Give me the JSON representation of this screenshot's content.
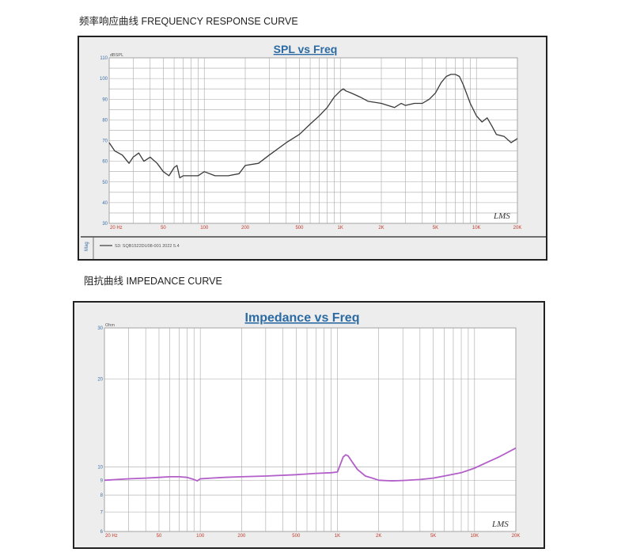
{
  "headings": {
    "freq": "频率响应曲线 FREQUENCY RESPONSE CURVE",
    "imp": "阻抗曲线 IMPEDANCE CURVE"
  },
  "colors": {
    "title": "#2b6aa3",
    "spl_line": "#3a3a3a",
    "imp_line": "#b25fc9",
    "tick": "#c0392b"
  },
  "chart_data": [
    {
      "type": "line",
      "title": "SPL vs Freq",
      "ylabel": "dBSPL",
      "xscale": "log",
      "xlim": [
        20,
        20000
      ],
      "ylim": [
        30,
        110
      ],
      "x_ticks": [
        {
          "v": 20,
          "label": "20 Hz"
        },
        {
          "v": 50,
          "label": "50"
        },
        {
          "v": 100,
          "label": "100"
        },
        {
          "v": 200,
          "label": "200"
        },
        {
          "v": 500,
          "label": "500"
        },
        {
          "v": 1000,
          "label": "1K"
        },
        {
          "v": 2000,
          "label": "2K"
        },
        {
          "v": 5000,
          "label": "5K"
        },
        {
          "v": 10000,
          "label": "10K"
        },
        {
          "v": 20000,
          "label": "20K"
        }
      ],
      "y_ticks": [
        110,
        100,
        90,
        80,
        70,
        60,
        50,
        40,
        30
      ],
      "legend_label": "Mag",
      "legend_text": "S3: SQB1522DU08-001  2022 5.4",
      "watermark": "LMS",
      "series": [
        {
          "x": [
            20,
            22,
            25,
            28,
            30,
            33,
            36,
            40,
            45,
            50,
            55,
            60,
            63,
            66,
            70,
            80,
            90,
            100,
            120,
            150,
            180,
            200,
            250,
            300,
            400,
            500,
            600,
            700,
            800,
            900,
            1000,
            1050,
            1100,
            1200,
            1400,
            1600,
            2000,
            2500,
            2800,
            3000,
            3500,
            4000,
            4500,
            5000,
            5500,
            6000,
            6500,
            7000,
            7500,
            8000,
            9000,
            10000,
            11000,
            12000,
            13000,
            14000,
            16000,
            18000,
            20000
          ],
          "y": [
            69,
            65,
            63,
            59,
            62,
            64,
            60,
            62,
            59,
            55,
            53,
            57,
            58,
            52,
            53,
            53,
            53,
            55,
            53,
            53,
            54,
            58,
            59,
            63,
            69,
            73,
            78,
            82,
            86,
            91,
            94,
            95,
            94,
            93,
            91,
            89,
            88,
            86,
            88,
            87,
            88,
            88,
            90,
            93,
            98,
            101,
            102,
            102,
            101,
            97,
            88,
            82,
            79,
            81,
            77,
            73,
            72,
            69,
            71
          ]
        }
      ]
    },
    {
      "type": "line",
      "title": "Impedance vs Freq",
      "ylabel": "Ohm",
      "xscale": "log",
      "yscale": "log",
      "xlim": [
        20,
        20000
      ],
      "ylim": [
        6,
        30
      ],
      "x_ticks": [
        {
          "v": 20,
          "label": "20 Hz"
        },
        {
          "v": 50,
          "label": "50"
        },
        {
          "v": 100,
          "label": "100"
        },
        {
          "v": 200,
          "label": "200"
        },
        {
          "v": 500,
          "label": "500"
        },
        {
          "v": 1000,
          "label": "1K"
        },
        {
          "v": 2000,
          "label": "2K"
        },
        {
          "v": 5000,
          "label": "5K"
        },
        {
          "v": 10000,
          "label": "10K"
        },
        {
          "v": 20000,
          "label": "20K"
        }
      ],
      "y_ticks": [
        {
          "v": 30,
          "label": "30"
        },
        {
          "v": 20,
          "label": "20"
        },
        {
          "v": 10,
          "label": "10"
        },
        {
          "v": 9,
          "label": "9"
        },
        {
          "v": 8,
          "label": "8"
        },
        {
          "v": 7,
          "label": "7"
        },
        {
          "v": 6,
          "label": "6"
        }
      ],
      "watermark": "LMS",
      "series": [
        {
          "x": [
            20,
            30,
            40,
            50,
            60,
            70,
            80,
            90,
            95,
            100,
            120,
            150,
            200,
            300,
            500,
            700,
            900,
            1000,
            1050,
            1100,
            1150,
            1200,
            1300,
            1400,
            1600,
            1800,
            2000,
            2500,
            3000,
            4000,
            5000,
            6000,
            8000,
            10000,
            12000,
            15000,
            20000
          ],
          "y": [
            9.0,
            9.1,
            9.15,
            9.2,
            9.25,
            9.25,
            9.2,
            9.05,
            8.95,
            9.1,
            9.15,
            9.2,
            9.25,
            9.3,
            9.4,
            9.5,
            9.55,
            9.6,
            10.2,
            10.8,
            11.0,
            10.9,
            10.3,
            9.8,
            9.3,
            9.15,
            9.0,
            8.95,
            8.98,
            9.05,
            9.15,
            9.3,
            9.55,
            9.9,
            10.3,
            10.8,
            11.6
          ]
        }
      ]
    }
  ]
}
